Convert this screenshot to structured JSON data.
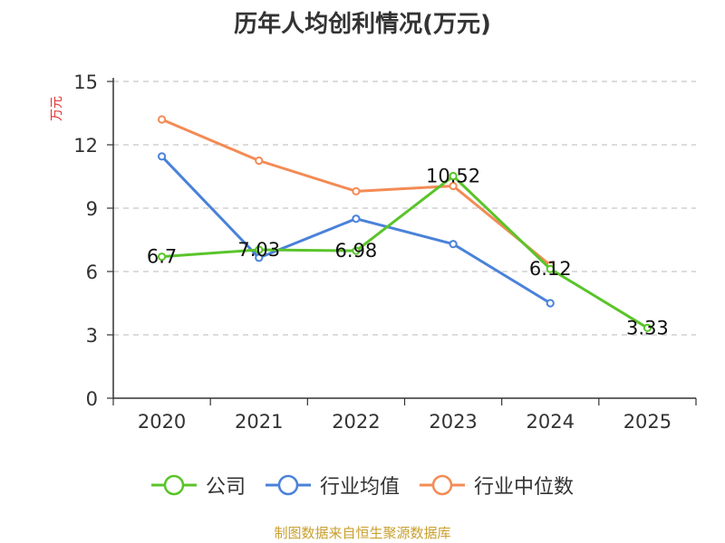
{
  "chart_data": {
    "type": "line",
    "title": "历年人均创利情况(万元)",
    "ylabel": "万元",
    "xlabel": "",
    "categories": [
      "2020",
      "2021",
      "2022",
      "2023",
      "2024",
      "2025"
    ],
    "ylim": [
      0,
      15
    ],
    "yticks": [
      0,
      3,
      6,
      9,
      12,
      15
    ],
    "grid": true,
    "legend_position": "bottom",
    "series": [
      {
        "name": "公司",
        "color": "#5ac42a",
        "values": [
          6.7,
          7.03,
          6.98,
          10.52,
          6.12,
          3.33
        ],
        "labels": [
          "6.7",
          "7.03",
          "6.98",
          "10.52",
          "6.12",
          "3.33"
        ]
      },
      {
        "name": "行业均值",
        "color": "#4a82d9",
        "values": [
          11.45,
          6.65,
          8.5,
          7.3,
          4.5,
          null
        ]
      },
      {
        "name": "行业中位数",
        "color": "#f38b55",
        "values": [
          13.2,
          11.25,
          9.8,
          10.05,
          6.3,
          null
        ]
      }
    ]
  },
  "source": "制图数据来自恒生聚源数据库"
}
